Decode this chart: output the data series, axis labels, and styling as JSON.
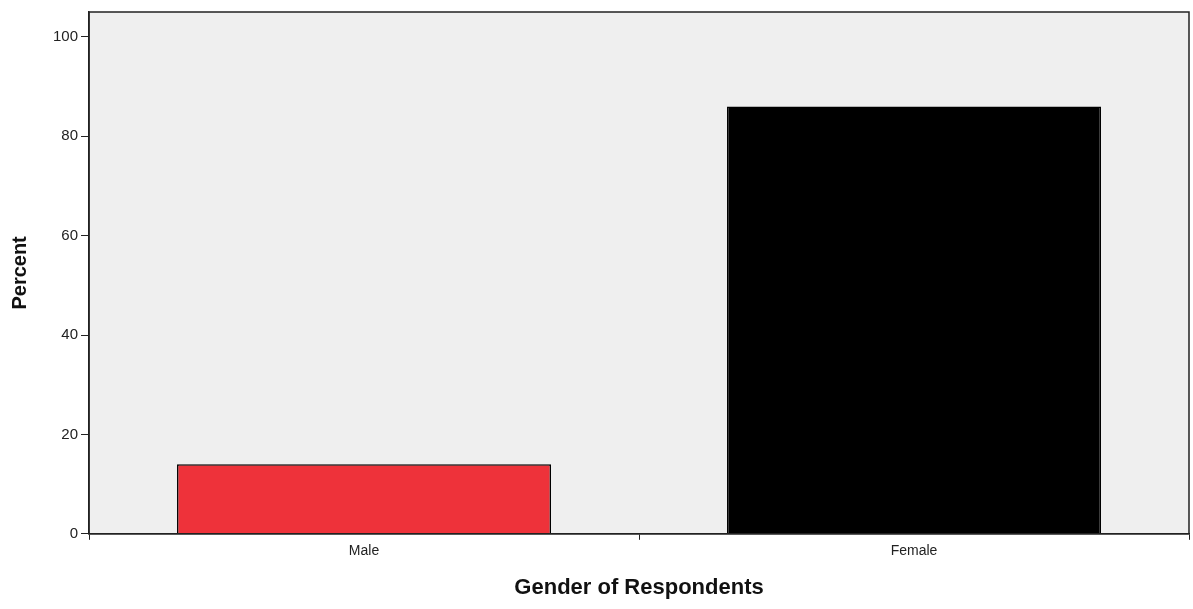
{
  "chart_data": {
    "type": "bar",
    "xlabel": "Gender of Respondents",
    "ylabel": "Percent",
    "categories": [
      "Male",
      "Female"
    ],
    "values": [
      14,
      86
    ],
    "colors": [
      "#ee323a",
      "#000000"
    ],
    "ylim": [
      0,
      105
    ],
    "yticks": [
      0,
      20,
      40,
      60,
      80,
      100
    ]
  }
}
